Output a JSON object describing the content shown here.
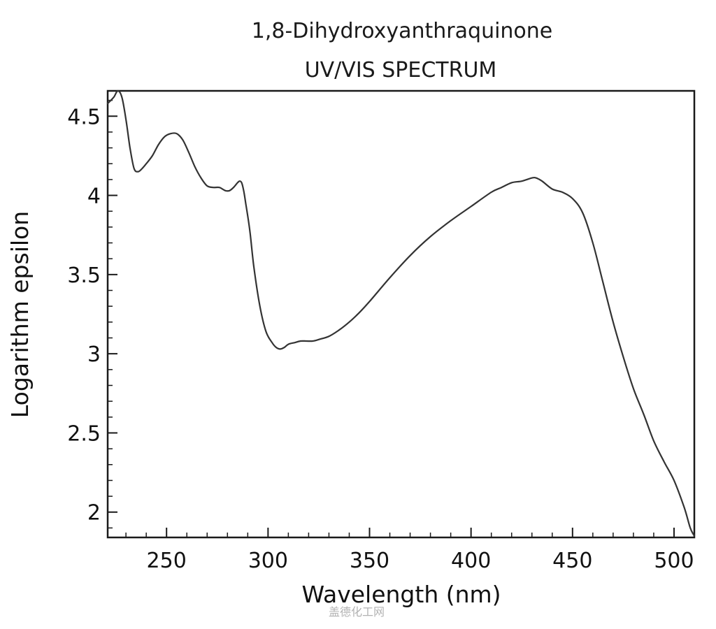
{
  "chart_data": {
    "type": "line",
    "title": "1,8-Dihydroxyanthraquinone",
    "subtitle": "UV/VIS SPECTRUM",
    "xlabel": "Wavelength (nm)",
    "ylabel": "Logarithm epsilon",
    "xlim": [
      221,
      510
    ],
    "ylim": [
      1.84,
      4.66
    ],
    "xticks": [
      250,
      300,
      350,
      400,
      450,
      500
    ],
    "xtick_labels": [
      "250",
      "300",
      "350",
      "400",
      "450",
      "500"
    ],
    "yticks": [
      2,
      2.5,
      3,
      3.5,
      4,
      4.5
    ],
    "ytick_labels": [
      "2",
      "2.5",
      "3",
      "3.5",
      "4",
      "4.5"
    ],
    "grid": false,
    "line_color": "#333333",
    "series": [
      {
        "x": [
          221,
          224,
          226,
          228,
          230,
          232,
          234,
          236,
          238,
          240,
          243,
          246,
          249,
          252,
          255,
          258,
          261,
          264,
          267,
          270,
          273,
          276,
          279,
          281,
          283,
          285,
          286,
          287,
          288,
          289,
          291,
          293,
          296,
          299,
          302,
          304,
          306,
          308,
          310,
          313,
          316,
          319,
          322,
          325,
          330,
          335,
          340,
          345,
          350,
          360,
          370,
          380,
          390,
          400,
          410,
          415,
          420,
          425,
          430,
          432,
          435,
          440,
          445,
          450,
          455,
          460,
          465,
          470,
          475,
          480,
          485,
          490,
          495,
          500,
          505,
          508,
          510
        ],
        "y": [
          4.58,
          4.62,
          4.66,
          4.62,
          4.48,
          4.3,
          4.17,
          4.15,
          4.17,
          4.2,
          4.25,
          4.32,
          4.37,
          4.39,
          4.39,
          4.35,
          4.27,
          4.18,
          4.11,
          4.06,
          4.05,
          4.05,
          4.03,
          4.03,
          4.05,
          4.08,
          4.09,
          4.08,
          4.03,
          3.95,
          3.78,
          3.55,
          3.3,
          3.14,
          3.07,
          3.04,
          3.03,
          3.04,
          3.06,
          3.07,
          3.08,
          3.08,
          3.08,
          3.09,
          3.11,
          3.15,
          3.2,
          3.26,
          3.33,
          3.48,
          3.62,
          3.74,
          3.84,
          3.93,
          4.02,
          4.05,
          4.08,
          4.09,
          4.11,
          4.11,
          4.09,
          4.04,
          4.02,
          3.98,
          3.89,
          3.7,
          3.45,
          3.2,
          2.98,
          2.78,
          2.62,
          2.45,
          2.32,
          2.2,
          2.03,
          1.9,
          1.85
        ]
      }
    ]
  },
  "watermark": "盖德化工网"
}
